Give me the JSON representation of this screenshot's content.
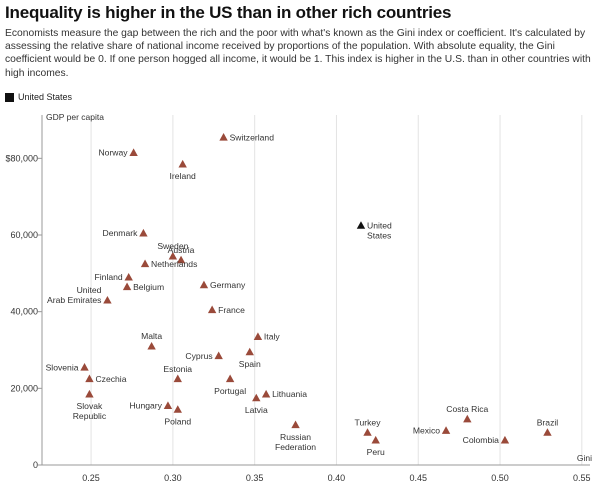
{
  "header": {
    "title": "Inequality is higher in the US than in other rich countries",
    "subtitle": "Economists measure the gap between the rich and the poor with what's known as the Gini index or coefficient. It's calculated by assessing the relative share of national income received by proportions of the population. With absolute equality, the Gini coefficient would be 0. If one person hogged all income, it would be 1. This index is higher in the U.S. than in other countries with high incomes."
  },
  "legend": {
    "label": "United States",
    "color": "#111111"
  },
  "colors": {
    "highlight": "#111111",
    "other": "#9a4a3a",
    "grid": "#e3e3e3",
    "axis": "#999999"
  },
  "chart_data": {
    "type": "scatter",
    "xlabel": "Gini",
    "ylabel": "GDP per capita",
    "xlim": [
      0.22,
      0.555
    ],
    "ylim": [
      0,
      90000
    ],
    "x_ticks": [
      0.25,
      0.3,
      0.35,
      0.4,
      0.45,
      0.5,
      0.55
    ],
    "x_tick_labels": [
      "0.25",
      "0.30",
      "0.35",
      "0.40",
      "0.45",
      "0.50",
      "0.55"
    ],
    "y_ticks": [
      0,
      20000,
      40000,
      60000,
      80000
    ],
    "y_tick_labels": [
      "0",
      "20,000",
      "40,000",
      "60,000",
      "$80,000"
    ],
    "grid": true,
    "legend_position": "top-left",
    "points": [
      {
        "name": "Switzerland",
        "x": 0.331,
        "y": 85500,
        "label": [
          "Switzerland"
        ],
        "pos": "right",
        "highlight": false
      },
      {
        "name": "Norway",
        "x": 0.276,
        "y": 81500,
        "label": [
          "Norway"
        ],
        "pos": "left",
        "highlight": false
      },
      {
        "name": "Ireland",
        "x": 0.306,
        "y": 78500,
        "label": [
          "Ireland"
        ],
        "pos": "below",
        "highlight": false
      },
      {
        "name": "Denmark",
        "x": 0.282,
        "y": 60500,
        "label": [
          "Denmark"
        ],
        "pos": "left",
        "highlight": false
      },
      {
        "name": "United States",
        "x": 0.415,
        "y": 62500,
        "label": [
          "United",
          "States"
        ],
        "pos": "right",
        "highlight": true
      },
      {
        "name": "Sweden",
        "x": 0.3,
        "y": 54500,
        "label": [
          "Sweden"
        ],
        "pos": "above",
        "highlight": false
      },
      {
        "name": "Austria",
        "x": 0.305,
        "y": 53500,
        "label": [
          "Austria"
        ],
        "pos": "above",
        "highlight": false
      },
      {
        "name": "Netherlands",
        "x": 0.283,
        "y": 52500,
        "label": [
          "Netherlands"
        ],
        "pos": "right",
        "highlight": false
      },
      {
        "name": "Finland",
        "x": 0.273,
        "y": 49000,
        "label": [
          "Finland"
        ],
        "pos": "left",
        "highlight": false
      },
      {
        "name": "Belgium",
        "x": 0.272,
        "y": 46500,
        "label": [
          "Belgium"
        ],
        "pos": "right",
        "highlight": false
      },
      {
        "name": "Germany",
        "x": 0.319,
        "y": 47000,
        "label": [
          "Germany"
        ],
        "pos": "right",
        "highlight": false
      },
      {
        "name": "United Arab Emirates",
        "x": 0.26,
        "y": 43000,
        "label": [
          "United",
          "Arab Emirates"
        ],
        "pos": "left",
        "highlight": false
      },
      {
        "name": "France",
        "x": 0.324,
        "y": 40500,
        "label": [
          "France"
        ],
        "pos": "right",
        "highlight": false
      },
      {
        "name": "Malta",
        "x": 0.287,
        "y": 31000,
        "label": [
          "Malta"
        ],
        "pos": "above",
        "highlight": false
      },
      {
        "name": "Italy",
        "x": 0.352,
        "y": 33500,
        "label": [
          "Italy"
        ],
        "pos": "right",
        "highlight": false
      },
      {
        "name": "Cyprus",
        "x": 0.328,
        "y": 28500,
        "label": [
          "Cyprus"
        ],
        "pos": "left",
        "highlight": false
      },
      {
        "name": "Spain",
        "x": 0.347,
        "y": 29500,
        "label": [
          "Spain"
        ],
        "pos": "below",
        "highlight": false
      },
      {
        "name": "Slovenia",
        "x": 0.246,
        "y": 25500,
        "label": [
          "Slovenia"
        ],
        "pos": "left",
        "highlight": false
      },
      {
        "name": "Czechia",
        "x": 0.249,
        "y": 22500,
        "label": [
          "Czechia"
        ],
        "pos": "right",
        "highlight": false
      },
      {
        "name": "Estonia",
        "x": 0.303,
        "y": 22500,
        "label": [
          "Estonia"
        ],
        "pos": "above",
        "highlight": false
      },
      {
        "name": "Portugal",
        "x": 0.335,
        "y": 22500,
        "label": [
          "Portugal"
        ],
        "pos": "below",
        "highlight": false
      },
      {
        "name": "Slovak Republic",
        "x": 0.249,
        "y": 18500,
        "label": [
          "Slovak",
          "Republic"
        ],
        "pos": "below",
        "highlight": false
      },
      {
        "name": "Lithuania",
        "x": 0.357,
        "y": 18500,
        "label": [
          "Lithuania"
        ],
        "pos": "right",
        "highlight": false
      },
      {
        "name": "Latvia",
        "x": 0.351,
        "y": 17500,
        "label": [
          "Latvia"
        ],
        "pos": "below",
        "highlight": false
      },
      {
        "name": "Hungary",
        "x": 0.297,
        "y": 15500,
        "label": [
          "Hungary"
        ],
        "pos": "left",
        "highlight": false
      },
      {
        "name": "Poland",
        "x": 0.303,
        "y": 14500,
        "label": [
          "Poland"
        ],
        "pos": "below",
        "highlight": false
      },
      {
        "name": "Costa Rica",
        "x": 0.48,
        "y": 12000,
        "label": [
          "Costa Rica"
        ],
        "pos": "above",
        "highlight": false
      },
      {
        "name": "Russian Federation",
        "x": 0.375,
        "y": 10500,
        "label": [
          "Russian",
          "Federation"
        ],
        "pos": "below",
        "highlight": false
      },
      {
        "name": "Brazil",
        "x": 0.529,
        "y": 8500,
        "label": [
          "Brazil"
        ],
        "pos": "above",
        "highlight": false
      },
      {
        "name": "Turkey",
        "x": 0.419,
        "y": 8500,
        "label": [
          "Turkey"
        ],
        "pos": "above",
        "highlight": false
      },
      {
        "name": "Mexico",
        "x": 0.467,
        "y": 9000,
        "label": [
          "Mexico"
        ],
        "pos": "left",
        "highlight": false
      },
      {
        "name": "Peru",
        "x": 0.424,
        "y": 6500,
        "label": [
          "Peru"
        ],
        "pos": "below",
        "highlight": false
      },
      {
        "name": "Colombia",
        "x": 0.503,
        "y": 6500,
        "label": [
          "Colombia"
        ],
        "pos": "left",
        "highlight": false
      }
    ]
  }
}
